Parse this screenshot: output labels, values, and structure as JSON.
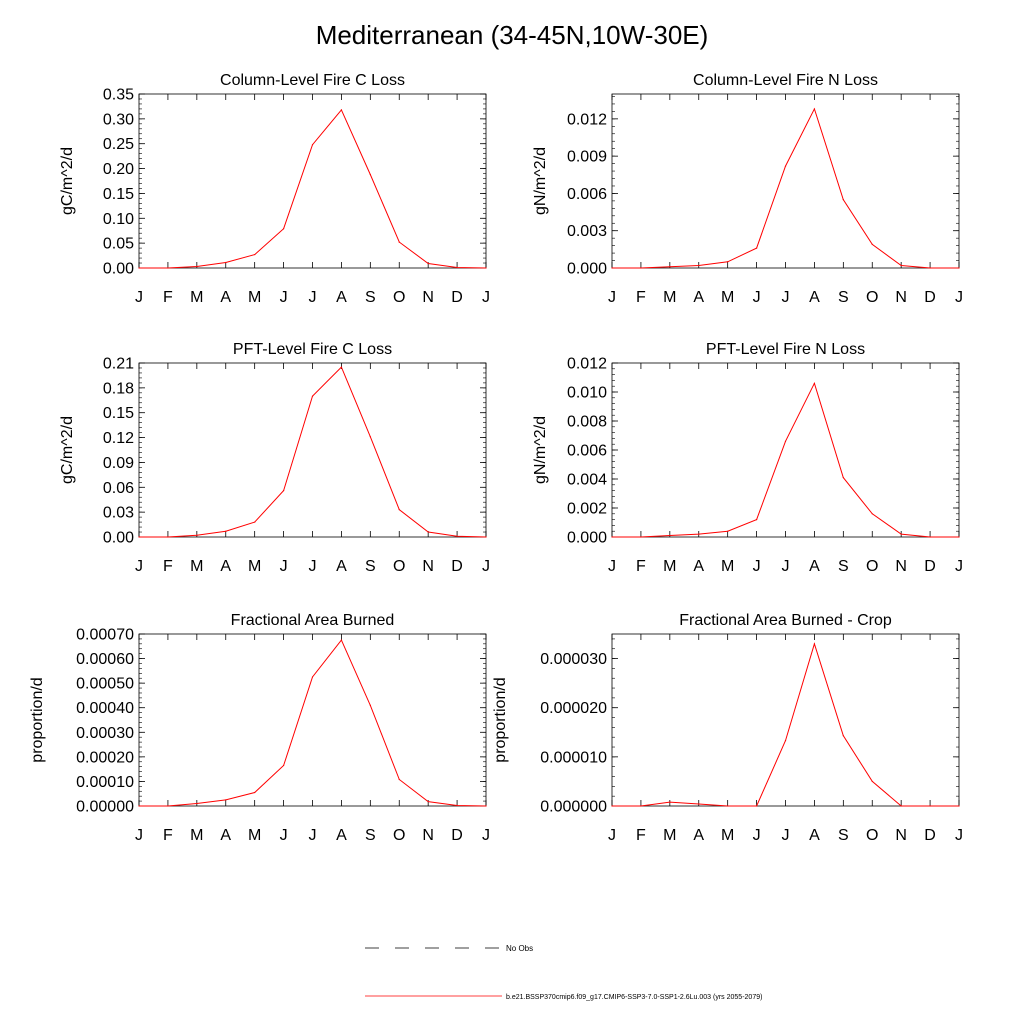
{
  "title": "Mediterranean (34-45N,10W-30E)",
  "months": [
    "J",
    "F",
    "M",
    "A",
    "M",
    "J",
    "J",
    "A",
    "S",
    "O",
    "N",
    "D",
    "J"
  ],
  "chart_data": [
    {
      "type": "line",
      "title": "Column-Level Fire C Loss",
      "ylabel": "gC/m^2/d",
      "ylim": [
        0,
        0.35
      ],
      "yticks": [
        "0.00",
        "0.05",
        "0.10",
        "0.15",
        "0.20",
        "0.25",
        "0.30",
        "0.35"
      ],
      "x": [
        "J",
        "F",
        "M",
        "A",
        "M",
        "J",
        "J",
        "A",
        "S",
        "O",
        "N",
        "D",
        "J"
      ],
      "series": [
        {
          "values": [
            0,
            0,
            0.003,
            0.011,
            0.027,
            0.079,
            0.248,
            0.318,
            0.188,
            0.052,
            0.009,
            0.001,
            0
          ]
        }
      ]
    },
    {
      "type": "line",
      "title": "Column-Level Fire N Loss",
      "ylabel": "gN/m^2/d",
      "ylim": [
        0,
        0.014
      ],
      "yticks": [
        "0.000",
        "0.003",
        "0.006",
        "0.009",
        "0.012"
      ],
      "x": [
        "J",
        "F",
        "M",
        "A",
        "M",
        "J",
        "J",
        "A",
        "S",
        "O",
        "N",
        "D",
        "J"
      ],
      "series": [
        {
          "values": [
            0,
            0,
            0.0001,
            0.0002,
            0.0005,
            0.0016,
            0.0082,
            0.0128,
            0.0055,
            0.0019,
            0.0002,
            0,
            0
          ]
        }
      ]
    },
    {
      "type": "line",
      "title": "PFT-Level Fire C Loss",
      "ylabel": "gC/m^2/d",
      "ylim": [
        0,
        0.21
      ],
      "yticks": [
        "0.00",
        "0.03",
        "0.06",
        "0.09",
        "0.12",
        "0.15",
        "0.18",
        "0.21"
      ],
      "x": [
        "J",
        "F",
        "M",
        "A",
        "M",
        "J",
        "J",
        "A",
        "S",
        "O",
        "N",
        "D",
        "J"
      ],
      "series": [
        {
          "values": [
            0,
            0,
            0.002,
            0.007,
            0.018,
            0.056,
            0.17,
            0.205,
            0.121,
            0.033,
            0.006,
            0.001,
            0
          ]
        }
      ]
    },
    {
      "type": "line",
      "title": "PFT-Level Fire N Loss",
      "ylabel": "gN/m^2/d",
      "ylim": [
        0,
        0.012
      ],
      "yticks": [
        "0.000",
        "0.002",
        "0.004",
        "0.006",
        "0.008",
        "0.010",
        "0.012"
      ],
      "x": [
        "J",
        "F",
        "M",
        "A",
        "M",
        "J",
        "J",
        "A",
        "S",
        "O",
        "N",
        "D",
        "J"
      ],
      "series": [
        {
          "values": [
            0,
            0,
            0.0001,
            0.0002,
            0.0004,
            0.0012,
            0.0066,
            0.0106,
            0.0041,
            0.0016,
            0.0002,
            0,
            0
          ]
        }
      ]
    },
    {
      "type": "line",
      "title": "Fractional Area Burned",
      "ylabel": "proportion/d",
      "ylim": [
        0,
        0.0007
      ],
      "yticks": [
        "0.00000",
        "0.00010",
        "0.00020",
        "0.00030",
        "0.00040",
        "0.00050",
        "0.00060",
        "0.00070"
      ],
      "x": [
        "J",
        "F",
        "M",
        "A",
        "M",
        "J",
        "J",
        "A",
        "S",
        "O",
        "N",
        "D",
        "J"
      ],
      "series": [
        {
          "values": [
            0,
            0,
            1e-05,
            2.5e-05,
            5.5e-05,
            0.000165,
            0.000525,
            0.000675,
            0.00041,
            0.000108,
            1.8e-05,
            2e-06,
            0
          ]
        }
      ]
    },
    {
      "type": "line",
      "title": "Fractional Area Burned - Crop",
      "ylabel": "proportion/d",
      "ylim": [
        0,
        3.5e-05
      ],
      "yticks": [
        "0.000000",
        "0.000010",
        "0.000020",
        "0.000030"
      ],
      "x": [
        "J",
        "F",
        "M",
        "A",
        "M",
        "J",
        "J",
        "A",
        "S",
        "O",
        "N",
        "D",
        "J"
      ],
      "series": [
        {
          "values": [
            0,
            0,
            8e-07,
            4e-07,
            0,
            0,
            1.33e-05,
            3.3e-05,
            1.43e-05,
            5e-06,
            0,
            0,
            0
          ]
        }
      ]
    }
  ],
  "legend": [
    {
      "label": "No Obs",
      "style": "dashed",
      "color": "#000000"
    },
    {
      "label": "b.e21.BSSP370cmip6.f09_g17.CMIP6-SSP3-7.0-SSP1-2.6Lu.003 (yrs 2055-2079)",
      "style": "solid",
      "color": "#ff0000"
    }
  ],
  "colors": {
    "series": "#ff0000",
    "axis": "#000000"
  }
}
